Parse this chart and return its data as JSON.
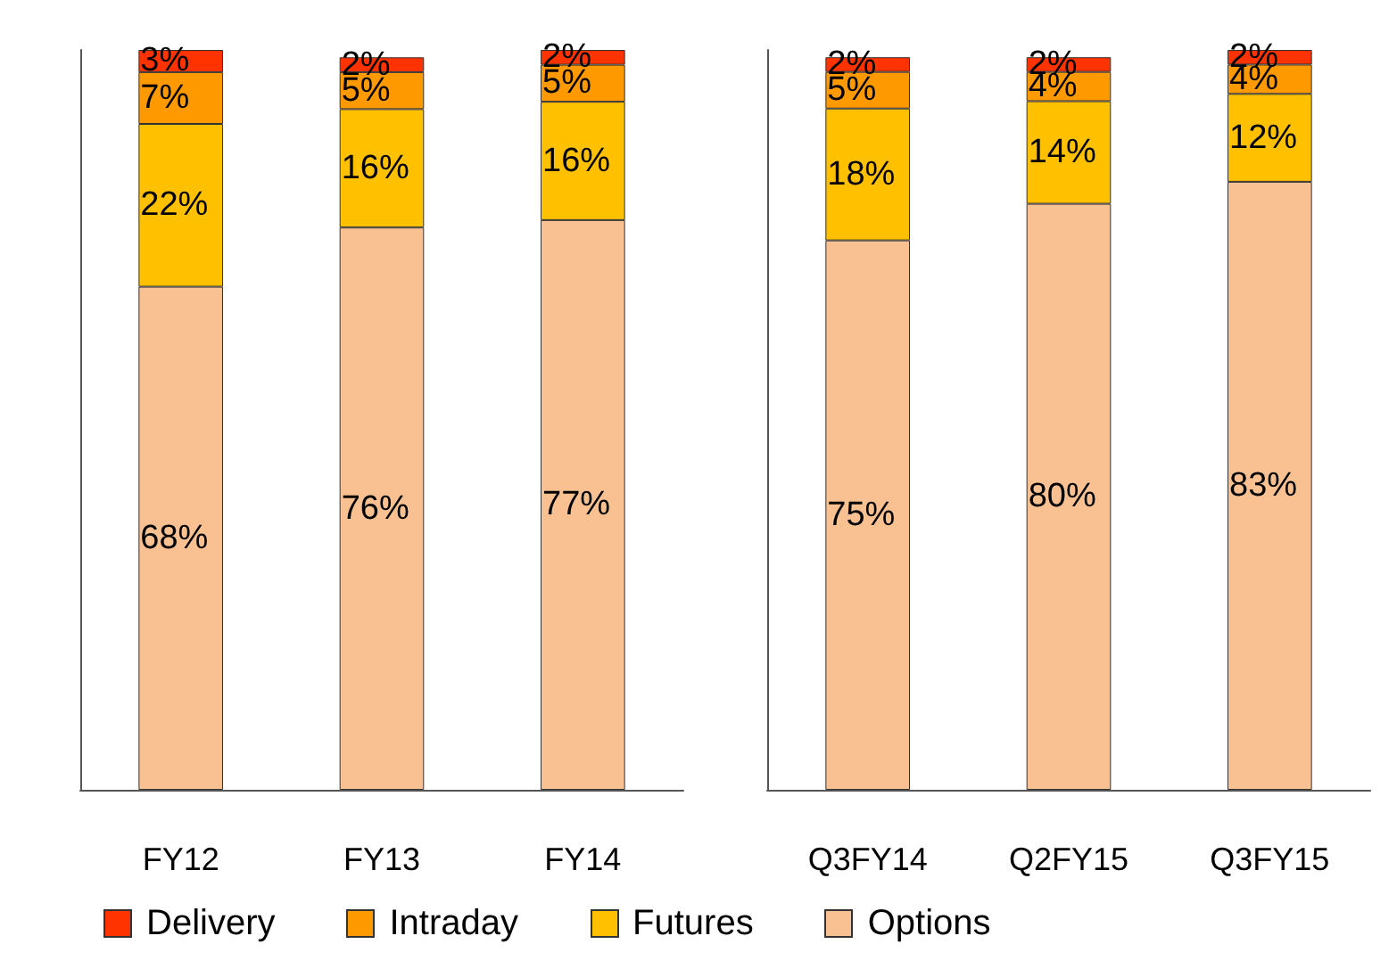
{
  "chart_data": [
    {
      "type": "bar",
      "stacked": true,
      "categories": [
        "FY12",
        "FY13",
        "FY14"
      ],
      "legend": "bottom",
      "tick_labels": "x",
      "series": [
        {
          "name": "Options",
          "color": "#f9c091",
          "values": [
            68,
            76,
            77
          ],
          "value_labels": [
            "68%",
            "76%",
            "77%"
          ]
        },
        {
          "name": "Futures",
          "color": "#ffc000",
          "values": [
            22,
            16,
            16
          ],
          "value_labels": [
            "22%",
            "16%",
            "16%"
          ]
        },
        {
          "name": "Intraday",
          "color": "#ff9900",
          "values": [
            7,
            5,
            5
          ],
          "value_labels": [
            "7%",
            "5%",
            "5%"
          ]
        },
        {
          "name": "Delivery",
          "color": "#ff3300",
          "values": [
            3,
            2,
            2
          ],
          "value_labels": [
            "3%",
            "2%",
            "2%"
          ]
        }
      ]
    },
    {
      "type": "bar",
      "stacked": true,
      "categories": [
        "Q3FY14",
        "Q2FY15",
        "Q3FY15"
      ],
      "legend": "bottom",
      "tick_labels": "x",
      "series": [
        {
          "name": "Options",
          "color": "#f9c091",
          "values": [
            75,
            80,
            83
          ],
          "value_labels": [
            "75%",
            "80%",
            "83%"
          ]
        },
        {
          "name": "Futures",
          "color": "#ffc000",
          "values": [
            18,
            14,
            12
          ],
          "value_labels": [
            "18%",
            "14%",
            "12%"
          ]
        },
        {
          "name": "Intraday",
          "color": "#ff9900",
          "values": [
            5,
            4,
            4
          ],
          "value_labels": [
            "5%",
            "4%",
            "4%"
          ]
        },
        {
          "name": "Delivery",
          "color": "#ff3300",
          "values": [
            2,
            2,
            2
          ],
          "value_labels": [
            "2%",
            "2%",
            "2%"
          ]
        }
      ]
    }
  ]
}
